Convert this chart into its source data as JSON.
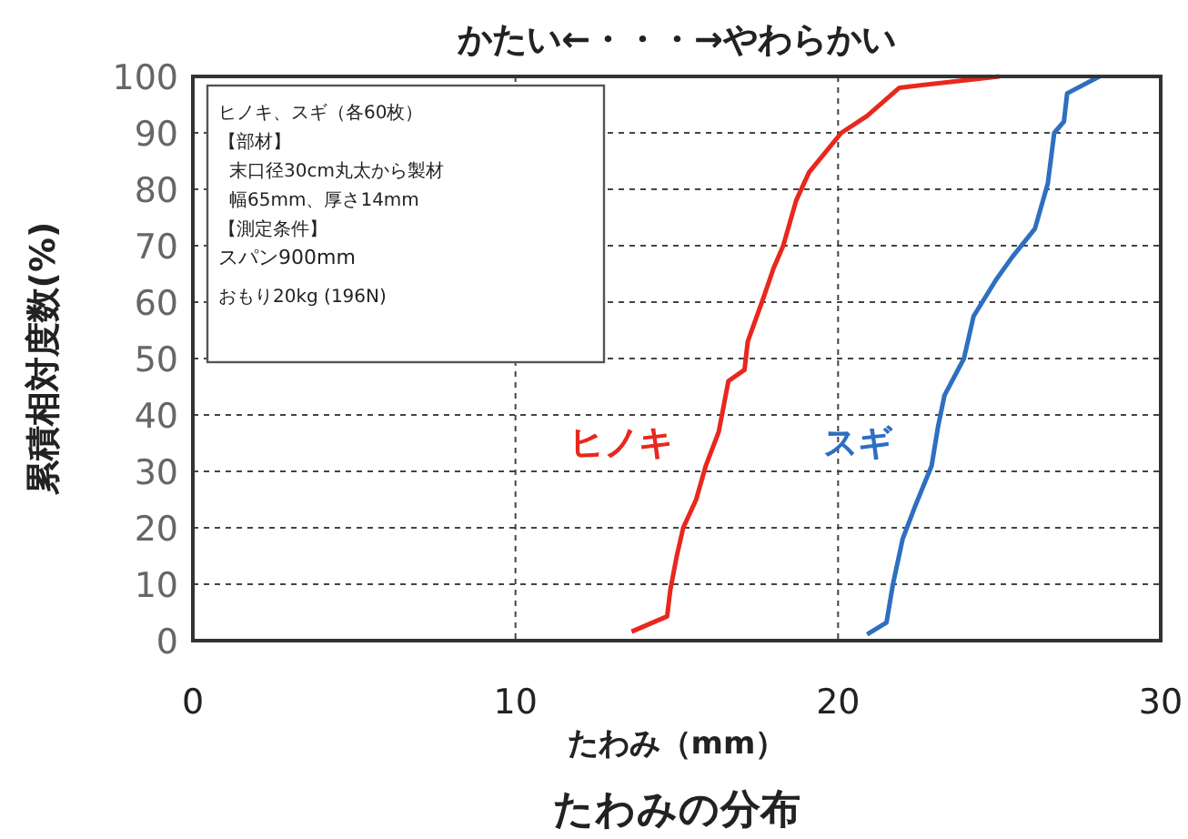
{
  "chart_data": {
    "type": "line",
    "title": "かたい←・・・→やわらかい",
    "xlabel": "たわみ（mm）",
    "ylabel": "累積相対度数(%)",
    "annotations": [
      "たわみの分布",
      "ヒノキ、スギ（各60枚）",
      "【部材】",
      "末口径30cm丸太から製材",
      "幅65mm、厚さ14mm",
      "【測定条件】",
      "スパン900mm",
      "おもり20kg (196N)"
    ],
    "xlim": [
      0,
      30
    ],
    "xticks": [
      0,
      10,
      20,
      30
    ],
    "ylim": [
      0,
      100
    ],
    "yticks": [
      0,
      10,
      20,
      30,
      40,
      50,
      60,
      70,
      80,
      90,
      100
    ],
    "grid": true,
    "legend": false,
    "marker": "none",
    "line_style": "solid",
    "series": [
      {
        "name": "ヒノキ",
        "color": "#e8281e",
        "x": [
          13.6,
          14.7,
          14.8,
          15.0,
          15.2,
          15.6,
          15.9,
          16.3,
          16.6,
          17.1,
          17.2,
          17.7,
          18.0,
          18.3,
          18.7,
          19.1,
          20.1,
          20.9,
          21.9,
          25.0
        ],
        "values": [
          1.6,
          4.3,
          9,
          15,
          20,
          25,
          31,
          37,
          46,
          48,
          53,
          61,
          66,
          70,
          78,
          83,
          90,
          93,
          98,
          100
        ]
      },
      {
        "name": "スギ",
        "color": "#2e6fc0",
        "x": [
          20.9,
          21.5,
          21.7,
          22.0,
          22.4,
          22.9,
          23.1,
          23.3,
          23.9,
          24.2,
          24.9,
          25.4,
          26.1,
          26.5,
          26.7,
          27.0,
          27.1,
          28.1
        ],
        "values": [
          1.1,
          3.2,
          10,
          18,
          24,
          31,
          38,
          43.5,
          50,
          57.5,
          64,
          68,
          73,
          81,
          90,
          92,
          97,
          100
        ]
      }
    ]
  }
}
